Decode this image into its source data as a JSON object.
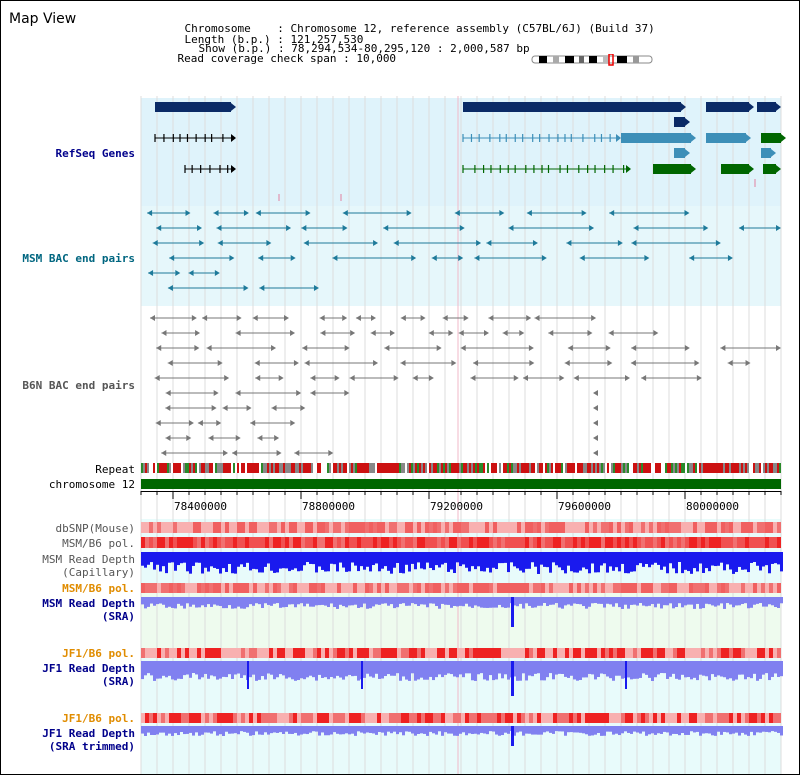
{
  "title": "Map View",
  "info": {
    "chromosome_label": "Chromosome",
    "chromosome_value": ": Chromosome 12, reference assembly (C57BL/6J) (Build 37)",
    "length_label": "Length (b.p.)",
    "length_value": ": 121,257,530",
    "show_label": "Show (b.p.)",
    "show_value": ": 78,294,534-80,295,120 : 2,000,587 bp",
    "coverage_label": "Read coverage check span",
    "coverage_value": ": 10,000"
  },
  "tracks": {
    "refseq": "RefSeq Genes",
    "msm_bac": "MSM BAC end pairs",
    "b6n_bac": "B6N BAC end pairs",
    "repeat": "Repeat",
    "chromosome": "chromosome 12",
    "dbsnp": "dbSNP(Mouse)",
    "msm_b6_pol_1": "MSM/B6 pol.",
    "msm_depth_cap_1": "MSM Read Depth",
    "msm_depth_cap_2": "(Capillary)",
    "msm_b6_pol_2": "MSM/B6 pol.",
    "msm_depth_sra_1": "MSM Read Depth",
    "msm_depth_sra_2": "(SRA)",
    "jf1_b6_pol_1": "JF1/B6 pol.",
    "jf1_depth_sra_1": "JF1 Read Depth",
    "jf1_depth_sra_2": "(SRA)",
    "jf1_b6_pol_2": "JF1/B6 pol.",
    "jf1_depth_trim_1": "JF1 Read Depth",
    "jf1_depth_trim_2": "(SRA trimmed)"
  },
  "ruler": {
    "labels": [
      "78400000",
      "78800000",
      "79200000",
      "79600000",
      "80000000"
    ],
    "start": 78294534,
    "end": 80295120
  },
  "colors": {
    "refseq_bg": "#dff3fb",
    "msm_bg": "#e6f7fb",
    "gene_dark": "#0a2a66",
    "gene_mid": "#3d8fb8",
    "gene_green": "#006600",
    "msm_pair": "#1e7a9a",
    "b6n_pair": "#777777",
    "chrom_bar": "#006600",
    "depth_blue": "#1a1aee",
    "depth_light": "#8080f0",
    "pol_red": "#f04040",
    "pol_light": "#f8b0b0"
  }
}
